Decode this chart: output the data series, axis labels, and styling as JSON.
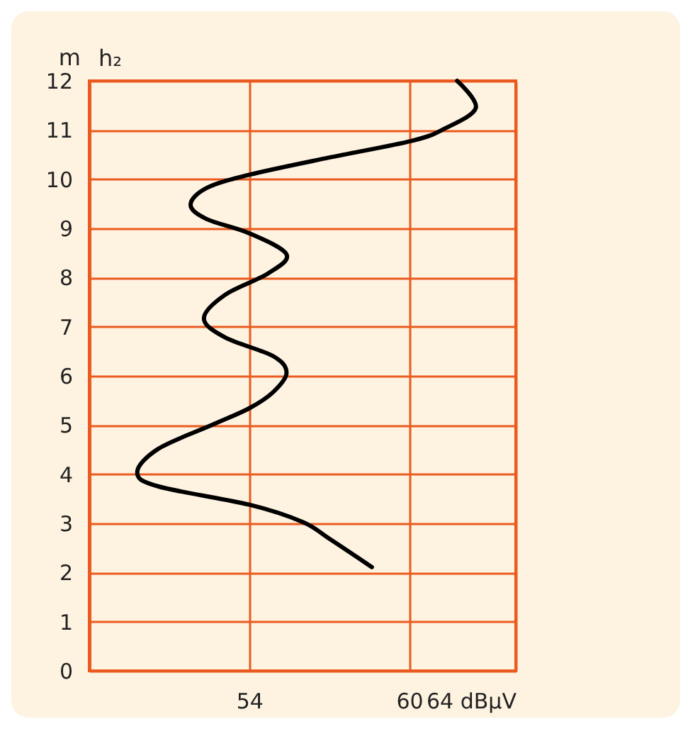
{
  "chart_data": {
    "type": "line",
    "ylabel": "h₂",
    "annotations": [
      "m"
    ],
    "xlim": [
      48,
      64
    ],
    "xticks": [
      54,
      60,
      {
        "value": 64,
        "label": "64 dBµV"
      }
    ],
    "ylim": [
      0,
      12
    ],
    "yticks": [
      0,
      1,
      2,
      3,
      4,
      5,
      6,
      7,
      8,
      9,
      10,
      11,
      12
    ],
    "grid": true,
    "marker": "none",
    "line_style": "solid",
    "series": [
      {
        "color": "#000000",
        "x": [
          61.8,
          62.5,
          61.3,
          60.1,
          57.0,
          54.0,
          52.4,
          51.8,
          52.4,
          54.0,
          55.4,
          54.7,
          53.1,
          52.3,
          53.1,
          54.9,
          55.4,
          54.9,
          54.0,
          52.6,
          50.6,
          49.8,
          50.6,
          54.0,
          56.0,
          57.0,
          58.6
        ],
        "values": [
          12.0,
          11.45,
          11.02,
          10.78,
          10.44,
          10.09,
          9.82,
          9.48,
          9.19,
          8.9,
          8.47,
          8.08,
          7.65,
          7.17,
          6.78,
          6.4,
          6.06,
          5.67,
          5.34,
          5.0,
          4.52,
          4.04,
          3.75,
          3.38,
          3.03,
          2.69,
          2.11
        ]
      }
    ]
  }
}
